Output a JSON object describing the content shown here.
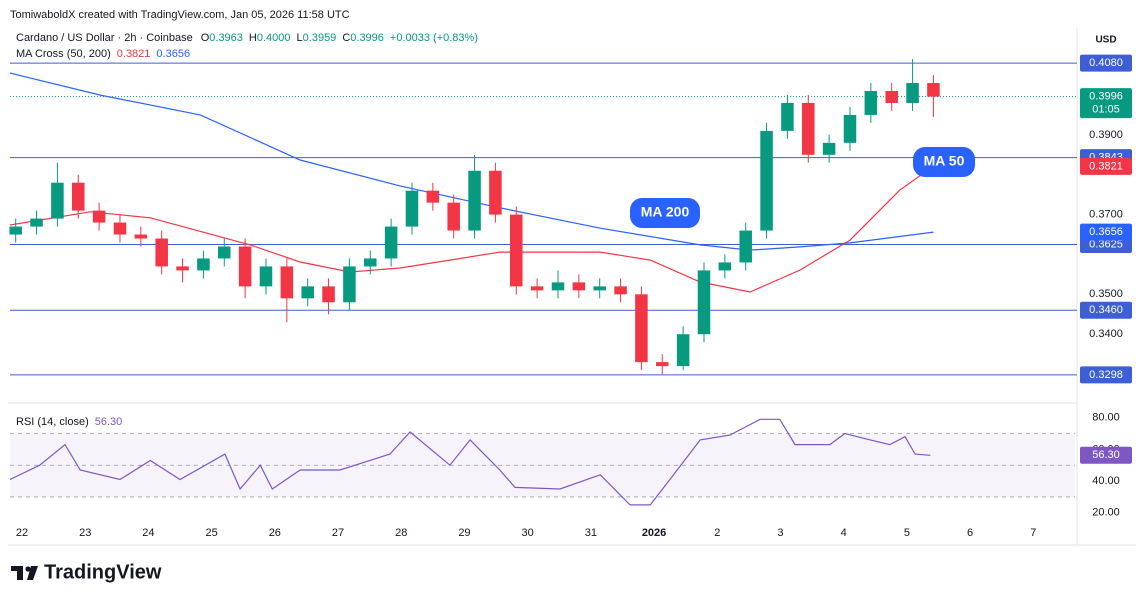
{
  "header": {
    "attribution": "TomiwaboldX created with TradingView.com, Jan 05, 2026 11:58 UTC"
  },
  "chart_data": [
    {
      "type": "candlestick",
      "title": "Cardano / US Dollar · 2h · Coinbase",
      "ohlc_legend": [
        {
          "key": "O",
          "value": "0.3963"
        },
        {
          "key": "H",
          "value": "0.4000"
        },
        {
          "key": "L",
          "value": "0.3959"
        },
        {
          "key": "C",
          "value": "0.3996"
        }
      ],
      "change": "+0.0033 (+0.83%)",
      "indicator": "MA Cross (50, 200)",
      "currency": "USD",
      "up_color": "#089981",
      "down_color": "#f23645",
      "x": [
        -0.1,
        0.23,
        0.56,
        0.89,
        1.22,
        1.55,
        1.88,
        2.21,
        2.54,
        2.87,
        3.2,
        3.53,
        3.86,
        4.19,
        4.52,
        4.85,
        5.18,
        5.51,
        5.84,
        6.17,
        6.5,
        6.83,
        7.16,
        7.49,
        7.82,
        8.15,
        8.48,
        8.81,
        9.14,
        9.47,
        9.8,
        10.13,
        10.46,
        10.79,
        11.12,
        11.45,
        11.78,
        12.11,
        12.44,
        12.77,
        13.1,
        13.43,
        13.76,
        14.09,
        14.42
      ],
      "open": [
        0.365,
        0.367,
        0.369,
        0.378,
        0.371,
        0.368,
        0.365,
        0.364,
        0.357,
        0.356,
        0.359,
        0.362,
        0.352,
        0.357,
        0.349,
        0.352,
        0.348,
        0.357,
        0.359,
        0.367,
        0.376,
        0.373,
        0.366,
        0.381,
        0.37,
        0.352,
        0.351,
        0.353,
        0.351,
        0.352,
        0.35,
        0.333,
        0.332,
        0.34,
        0.356,
        0.358,
        0.366,
        0.391,
        0.398,
        0.385,
        0.388,
        0.395,
        0.401,
        0.398,
        0.403
      ],
      "high": [
        0.369,
        0.371,
        0.383,
        0.38,
        0.373,
        0.37,
        0.367,
        0.366,
        0.359,
        0.361,
        0.364,
        0.364,
        0.359,
        0.359,
        0.354,
        0.354,
        0.359,
        0.361,
        0.369,
        0.378,
        0.378,
        0.375,
        0.385,
        0.383,
        0.372,
        0.354,
        0.356,
        0.355,
        0.354,
        0.354,
        0.352,
        0.335,
        0.342,
        0.358,
        0.36,
        0.368,
        0.393,
        0.4,
        0.4,
        0.39,
        0.397,
        0.403,
        0.403,
        0.409,
        0.405
      ],
      "low": [
        0.363,
        0.365,
        0.367,
        0.369,
        0.366,
        0.363,
        0.362,
        0.355,
        0.353,
        0.354,
        0.357,
        0.349,
        0.35,
        0.343,
        0.347,
        0.345,
        0.346,
        0.355,
        0.357,
        0.365,
        0.371,
        0.364,
        0.364,
        0.368,
        0.35,
        0.349,
        0.349,
        0.349,
        0.349,
        0.348,
        0.331,
        0.33,
        0.331,
        0.338,
        0.354,
        0.356,
        0.364,
        0.389,
        0.383,
        0.383,
        0.386,
        0.393,
        0.396,
        0.396,
        0.3945
      ],
      "close": [
        0.367,
        0.369,
        0.378,
        0.371,
        0.368,
        0.365,
        0.364,
        0.357,
        0.356,
        0.359,
        0.362,
        0.352,
        0.357,
        0.349,
        0.352,
        0.348,
        0.357,
        0.359,
        0.367,
        0.376,
        0.373,
        0.366,
        0.381,
        0.37,
        0.352,
        0.351,
        0.353,
        0.351,
        0.352,
        0.35,
        0.333,
        0.332,
        0.34,
        0.356,
        0.358,
        0.366,
        0.391,
        0.398,
        0.385,
        0.388,
        0.395,
        0.401,
        0.398,
        0.403,
        0.3996
      ],
      "current_price": {
        "value": 0.3996,
        "label": "0.3996",
        "countdown": "01:05"
      },
      "series": [
        {
          "name": "MA 50",
          "color": "#f23645",
          "x": [
            -0.19,
            1.08,
            2.03,
            3.61,
            4.4,
            5.19,
            5.98,
            6.77,
            7.56,
            9.15,
            9.94,
            10.73,
            11.52,
            12.31,
            13.1,
            13.89,
            14.42
          ],
          "values": [
            0.3674,
            0.3707,
            0.3692,
            0.3624,
            0.3581,
            0.3556,
            0.3566,
            0.3586,
            0.3606,
            0.3606,
            0.3586,
            0.3531,
            0.3506,
            0.3561,
            0.3636,
            0.3762,
            0.3821
          ],
          "last": {
            "value": 0.3821,
            "label": "0.3821"
          }
        },
        {
          "name": "MA 200",
          "color": "#2962ff",
          "x": [
            -0.19,
            1.23,
            2.82,
            4.4,
            5.98,
            7.56,
            9.15,
            10.73,
            11.52,
            12.31,
            13.1,
            14.42
          ],
          "values": [
            0.4055,
            0.4,
            0.395,
            0.3837,
            0.3772,
            0.3717,
            0.3666,
            0.3624,
            0.3611,
            0.3619,
            0.3629,
            0.3656
          ],
          "last": {
            "value": 0.3656,
            "label": "0.3656"
          }
        }
      ],
      "hlines": [
        {
          "value": 0.408,
          "label": "0.4080"
        },
        {
          "value": 0.3843,
          "label": "0.3843"
        },
        {
          "value": 0.3625,
          "label": "0.3625"
        },
        {
          "value": 0.346,
          "label": "0.3460"
        },
        {
          "value": 0.3298,
          "label": "0.3298"
        }
      ],
      "hline_color": "#3d5fd6",
      "xlim": [
        -0.19,
        16.66
      ],
      "ylim": [
        0.3235,
        0.4163
      ],
      "yticks": [
        {
          "value": 0.34,
          "label": "0.3400"
        },
        {
          "value": 0.35,
          "label": "0.3500"
        },
        {
          "value": 0.37,
          "label": "0.3700"
        },
        {
          "value": 0.39,
          "label": "0.3900"
        }
      ]
    },
    {
      "type": "line",
      "title": "RSI (14, close)",
      "series": [
        {
          "color": "#7e57c2",
          "x": [
            -0.19,
            0.28,
            0.68,
            0.92,
            1.55,
            2.03,
            2.5,
            3.21,
            3.45,
            3.77,
            3.96,
            4.4,
            5.03,
            5.82,
            6.14,
            6.77,
            7.09,
            7.56,
            7.8,
            8.51,
            9.15,
            9.62,
            9.94,
            10.25,
            10.73,
            11.2,
            11.68,
            11.99,
            12.23,
            12.78,
            13.02,
            13.42,
            13.73,
            13.97,
            14.13,
            14.37
          ],
          "values": [
            41,
            50,
            63,
            47,
            41,
            53,
            41,
            57,
            35,
            50,
            35,
            47,
            47,
            57,
            71,
            50,
            66,
            47,
            36,
            35,
            44,
            25,
            25,
            41,
            66,
            69,
            79,
            79,
            63,
            63,
            70,
            66,
            63,
            68,
            57,
            56.3
          ],
          "last": {
            "value": 56.3,
            "label": "56.30"
          }
        }
      ],
      "bands": [
        30,
        50,
        70
      ],
      "xlim": [
        -0.19,
        16.66
      ],
      "ylim": [
        6,
        88
      ],
      "yticks": [
        {
          "value": 20,
          "label": "20.00"
        },
        {
          "value": 40,
          "label": "40.00"
        },
        {
          "value": 60,
          "label": "60.00"
        },
        {
          "value": 80,
          "label": "80.00"
        }
      ],
      "xticks": [
        {
          "value": 0,
          "label": "22"
        },
        {
          "value": 1,
          "label": "23"
        },
        {
          "value": 2,
          "label": "24"
        },
        {
          "value": 3,
          "label": "25"
        },
        {
          "value": 4,
          "label": "26"
        },
        {
          "value": 5,
          "label": "27"
        },
        {
          "value": 6,
          "label": "28"
        },
        {
          "value": 7,
          "label": "29"
        },
        {
          "value": 8,
          "label": "30"
        },
        {
          "value": 9,
          "label": "31"
        },
        {
          "value": 10,
          "label": "2026"
        },
        {
          "value": 11,
          "label": "2"
        },
        {
          "value": 12,
          "label": "3"
        },
        {
          "value": 13,
          "label": "4"
        },
        {
          "value": 14,
          "label": "5"
        },
        {
          "value": 15,
          "label": "6"
        },
        {
          "value": 16,
          "label": "7"
        }
      ]
    }
  ],
  "footer": {
    "brand": "TradingView"
  }
}
